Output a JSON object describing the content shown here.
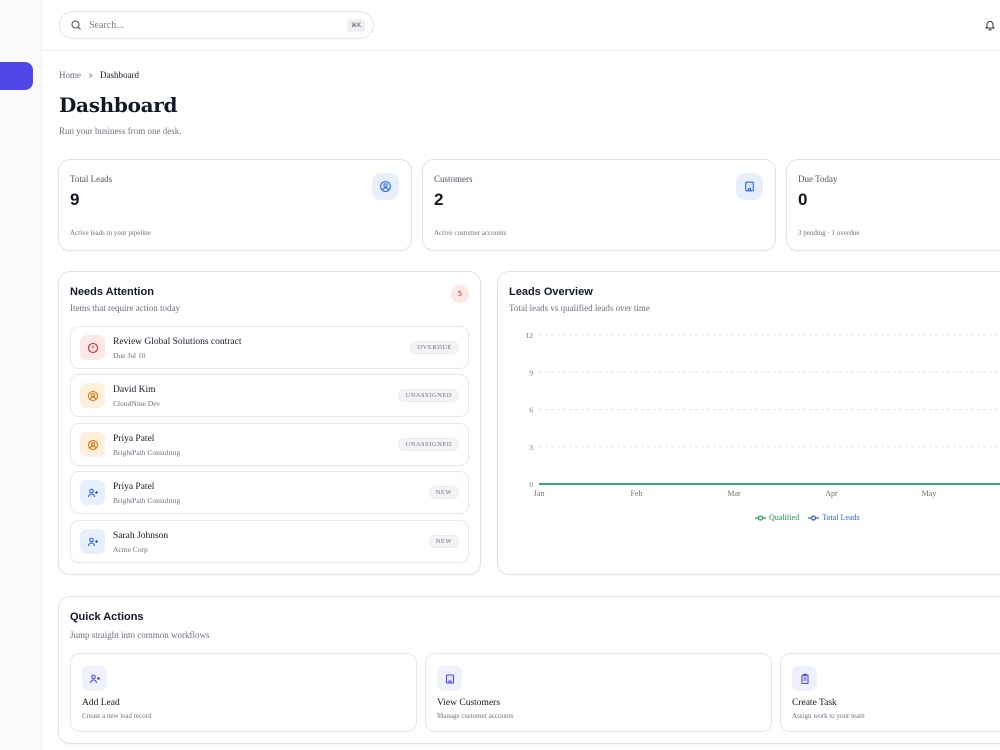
{
  "search": {
    "placeholder": "Search...",
    "shortcut": "⌘K"
  },
  "breadcrumb": {
    "home": "Home",
    "current": "Dashboard"
  },
  "page": {
    "title": "Dashboard",
    "subtitle": "Run your business from one desk."
  },
  "stats": [
    {
      "label": "Total Leads",
      "value": "9",
      "footnote": "Active leads in your pipeline",
      "icon": "user-circle-icon"
    },
    {
      "label": "Customers",
      "value": "2",
      "footnote": "Active customer accounts",
      "icon": "building-icon"
    },
    {
      "label": "Due Today",
      "value": "0",
      "footnote": "3 pending · 1 overdue",
      "icon": "calendar-icon"
    }
  ],
  "attention": {
    "title": "Needs Attention",
    "subtitle": "Items that require action today",
    "count": "5",
    "items": [
      {
        "title": "Review Global Solutions contract",
        "sub": "Due Jul 10",
        "tag": "OVERDUE",
        "icon": "alert-circle-icon",
        "tone": "#dc2626",
        "bg": "#fde8e8"
      },
      {
        "title": "David Kim",
        "sub": "CloudNine Dev",
        "tag": "UNASSIGNED",
        "icon": "user-circle-icon",
        "tone": "#d97706",
        "bg": "#fdf0dc"
      },
      {
        "title": "Priya Patel",
        "sub": "BrightPath Consulting",
        "tag": "UNASSIGNED",
        "icon": "user-circle-icon",
        "tone": "#d97706",
        "bg": "#fdf0dc"
      },
      {
        "title": "Priya Patel",
        "sub": "BrightPath Consulting",
        "tag": "NEW",
        "icon": "user-plus-icon",
        "tone": "#2563eb",
        "bg": "#e8effc"
      },
      {
        "title": "Sarah Johnson",
        "sub": "Acme Corp",
        "tag": "NEW",
        "icon": "user-plus-icon",
        "tone": "#2563eb",
        "bg": "#e8effc"
      }
    ]
  },
  "overview": {
    "title": "Leads Overview",
    "subtitle": "Total leads vs qualified leads over time"
  },
  "chart_data": {
    "type": "line",
    "title": "Leads Overview",
    "subtitle": "Total leads vs qualified leads over time",
    "categories": [
      "Jan",
      "Feb",
      "Mar",
      "Apr",
      "May"
    ],
    "y_ticks": [
      "12",
      "9",
      "6",
      "3",
      "0"
    ],
    "ylim": [
      0,
      12
    ],
    "grid": true,
    "legend_position": "bottom-center",
    "series": [
      {
        "name": "Qualified",
        "values": [
          0,
          0,
          0,
          0,
          0
        ],
        "color": "#16a34a"
      },
      {
        "name": "Total Leads",
        "values": [
          0,
          0,
          0,
          0,
          0
        ],
        "color": "#2563eb"
      }
    ]
  },
  "quick_actions": {
    "title": "Quick Actions",
    "subtitle": "Jump straight into common workflows",
    "items": [
      {
        "title": "Add Lead",
        "sub": "Create a new lead record",
        "icon": "user-plus-icon"
      },
      {
        "title": "View Customers",
        "sub": "Manage customer accounts",
        "icon": "building-icon"
      },
      {
        "title": "Create Task",
        "sub": "Assign work to your team",
        "icon": "clipboard-icon"
      }
    ]
  },
  "colors": {
    "accent": "#4f46e5",
    "blue": "#2563eb",
    "green": "#16a34a",
    "danger": "#dc2626",
    "warning": "#d97706"
  }
}
